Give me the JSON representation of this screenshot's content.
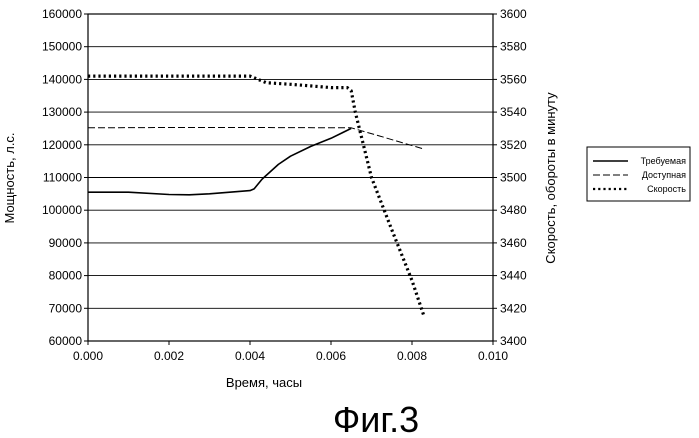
{
  "chart_data": {
    "type": "line",
    "caption": "Фиг.3",
    "xlabel": "Время, часы",
    "ylabel_left": "Мощность, л.с.",
    "ylabel_right": "Скорость, обороты в минуту",
    "xlim": [
      0,
      0.01
    ],
    "ylim_left": [
      60000,
      160000
    ],
    "ylim_right": [
      3400,
      3600
    ],
    "x_ticks": [
      "0.000",
      "0.002",
      "0.004",
      "0.006",
      "0.008",
      "0.010"
    ],
    "y_left_ticks": [
      "60000",
      "70000",
      "80000",
      "90000",
      "100000",
      "110000",
      "120000",
      "130000",
      "140000",
      "150000",
      "160000"
    ],
    "y_right_ticks": [
      "3400",
      "3420",
      "3440",
      "3460",
      "3480",
      "3500",
      "3520",
      "3540",
      "3560",
      "3580",
      "3600"
    ],
    "grid": true,
    "legend_position": "right",
    "series": [
      {
        "name": "Требуемая",
        "axis": "left",
        "style": "solid",
        "color": "#000000",
        "x": [
          0.0,
          0.001,
          0.002,
          0.0025,
          0.003,
          0.0035,
          0.004,
          0.0041,
          0.0043,
          0.0047,
          0.005,
          0.0055,
          0.006,
          0.0063,
          0.0065
        ],
        "y": [
          105500,
          105500,
          104800,
          104700,
          105000,
          105500,
          106000,
          106500,
          109500,
          114000,
          116500,
          119500,
          122000,
          123800,
          125000
        ]
      },
      {
        "name": "Доступная",
        "axis": "left",
        "style": "dashed",
        "color": "#000000",
        "x": [
          0.0,
          0.002,
          0.004,
          0.0065,
          0.0072,
          0.0078,
          0.0083
        ],
        "y": [
          125200,
          125300,
          125300,
          125200,
          122700,
          120500,
          118700
        ]
      },
      {
        "name": "Скорость",
        "axis": "right",
        "style": "dotted",
        "color": "#000000",
        "x": [
          0.0,
          0.002,
          0.004,
          0.0042,
          0.0044,
          0.005,
          0.0055,
          0.006,
          0.0064,
          0.0065,
          0.0066,
          0.007,
          0.0075,
          0.008,
          0.0083
        ],
        "y": [
          3562,
          3562,
          3562,
          3560,
          3558,
          3557,
          3556,
          3555,
          3555,
          3553,
          3540,
          3500,
          3468,
          3437,
          3415
        ]
      }
    ]
  }
}
